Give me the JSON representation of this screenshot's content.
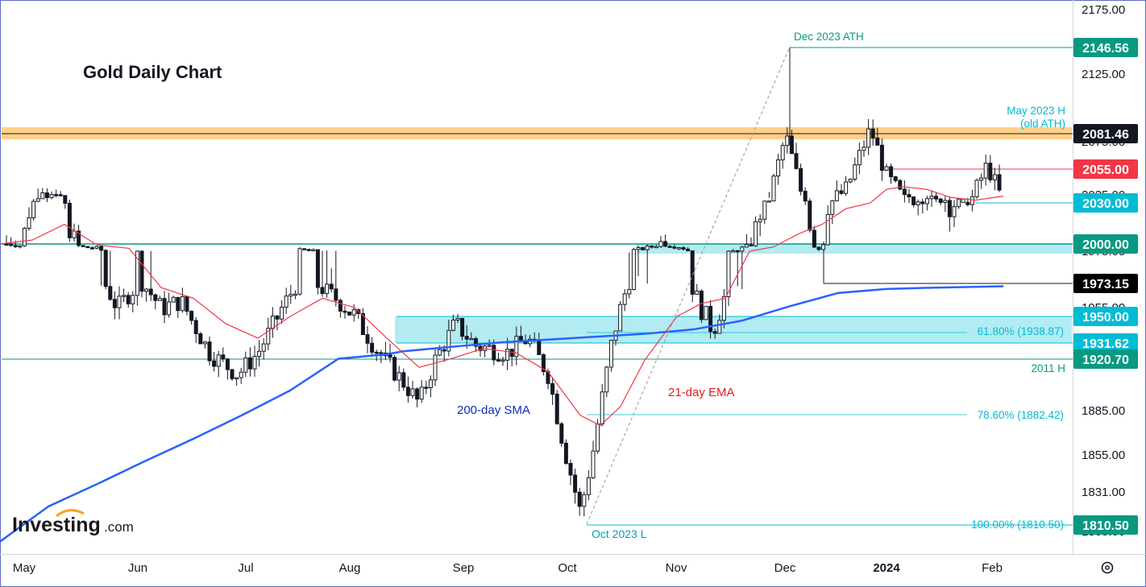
{
  "chart_data": {
    "type": "candlestick",
    "title": "Gold Daily Chart",
    "x_axis": {
      "labels": [
        "May",
        "Jun",
        "Jul",
        "Aug",
        "Sep",
        "Oct",
        "Nov",
        "Dec",
        "2024",
        "Feb"
      ]
    },
    "y_axis": {
      "range": [
        1795,
        2180
      ],
      "ticks": [
        "2175.00",
        "2125.00",
        "2075.00",
        "2025.00",
        "1975.00",
        "1955.00",
        "1885.00",
        "1855.00",
        "1831.00",
        "1805.00"
      ]
    },
    "series": [
      {
        "name": "200-day SMA",
        "color": "#2962ff",
        "points": [
          [
            0,
            1798
          ],
          [
            60,
            1822
          ],
          [
            120,
            1836
          ],
          [
            180,
            1851
          ],
          [
            240,
            1866
          ],
          [
            300,
            1882
          ],
          [
            360,
            1899
          ],
          [
            420,
            1921
          ],
          [
            480,
            1924
          ],
          [
            500,
            1926
          ],
          [
            560,
            1929
          ],
          [
            620,
            1932
          ],
          [
            680,
            1934
          ],
          [
            740,
            1936
          ],
          [
            800,
            1938
          ],
          [
            860,
            1941
          ],
          [
            920,
            1947
          ],
          [
            980,
            1956
          ],
          [
            1040,
            1966
          ],
          [
            1100,
            1969
          ],
          [
            1160,
            1970
          ],
          [
            1245,
            1971
          ]
        ]
      },
      {
        "name": "21-day EMA",
        "color": "#f23645",
        "points": [
          [
            0,
            2000
          ],
          [
            40,
            2002
          ],
          [
            80,
            2010
          ],
          [
            120,
            1997
          ],
          [
            160,
            1985
          ],
          [
            200,
            1970
          ],
          [
            240,
            1962
          ],
          [
            280,
            1945
          ],
          [
            320,
            1935
          ],
          [
            360,
            1950
          ],
          [
            400,
            1962
          ],
          [
            440,
            1955
          ],
          [
            480,
            1935
          ],
          [
            520,
            1915
          ],
          [
            560,
            1921
          ],
          [
            600,
            1928
          ],
          [
            640,
            1925
          ],
          [
            680,
            1912
          ],
          [
            720,
            1882
          ],
          [
            745,
            1875
          ],
          [
            770,
            1888
          ],
          [
            800,
            1920
          ],
          [
            840,
            1950
          ],
          [
            870,
            1958
          ],
          [
            900,
            1962
          ],
          [
            930,
            1975
          ],
          [
            960,
            1990
          ],
          [
            990,
            2005
          ],
          [
            1020,
            2010
          ],
          [
            1050,
            2018
          ],
          [
            1080,
            2030
          ],
          [
            1100,
            2040
          ],
          [
            1120,
            2042
          ],
          [
            1150,
            2040
          ],
          [
            1180,
            2034
          ],
          [
            1210,
            2032
          ],
          [
            1245,
            2035
          ]
        ]
      },
      {
        "name": "Price path",
        "color": "#131722",
        "points": [
          [
            8,
            2000
          ],
          [
            25,
            1995
          ],
          [
            50,
            2045
          ],
          [
            75,
            2025
          ],
          [
            100,
            1990
          ],
          [
            120,
            1985
          ],
          [
            145,
            1955
          ],
          [
            175,
            1975
          ],
          [
            200,
            1955
          ],
          [
            225,
            1960
          ],
          [
            260,
            1925
          ],
          [
            295,
            1910
          ],
          [
            320,
            1925
          ],
          [
            350,
            1955
          ],
          [
            375,
            1980
          ],
          [
            410,
            1965
          ],
          [
            440,
            1950
          ],
          [
            470,
            1925
          ],
          [
            500,
            1905
          ],
          [
            520,
            1890
          ],
          [
            540,
            1920
          ],
          [
            565,
            1945
          ],
          [
            590,
            1930
          ],
          [
            630,
            1925
          ],
          [
            655,
            1935
          ],
          [
            680,
            1910
          ],
          [
            700,
            1860
          ],
          [
            720,
            1818
          ],
          [
            735,
            1855
          ],
          [
            760,
            1935
          ],
          [
            780,
            1975
          ],
          [
            800,
            1985
          ],
          [
            820,
            2000
          ],
          [
            845,
            1990
          ],
          [
            870,
            1955
          ],
          [
            885,
            1940
          ],
          [
            900,
            1965
          ],
          [
            930,
            1995
          ],
          [
            955,
            2035
          ],
          [
            975,
            2080
          ],
          [
            1000,
            2025
          ],
          [
            1015,
            1980
          ],
          [
            1030,
            2030
          ],
          [
            1050,
            2040
          ],
          [
            1080,
            2085
          ],
          [
            1100,
            2050
          ],
          [
            1130,
            2025
          ],
          [
            1160,
            2030
          ],
          [
            1180,
            2020
          ],
          [
            1200,
            2025
          ],
          [
            1225,
            2058
          ],
          [
            1245,
            2030
          ]
        ]
      }
    ],
    "horizontal_levels": [
      {
        "value": "2146.56",
        "color": "#089981",
        "label": "Dec 2023 ATH"
      },
      {
        "value": "2081.46",
        "color": "#131722",
        "label": "May 2023 H (old ATH)",
        "zone_color": "#ffd08a"
      },
      {
        "value": "2055.00",
        "color": "#f23645"
      },
      {
        "value": "2030.00",
        "color": "#00bcd4"
      },
      {
        "value": "2000.00",
        "color": "#089981",
        "zone_color": "#b2ebf2"
      },
      {
        "value": "1973.15",
        "color": "#000000"
      },
      {
        "value": "1950.00",
        "color": "#00bcd4",
        "zone_color": "#b2ebf2"
      },
      {
        "value": "1931.62",
        "color": "#00bcd4"
      },
      {
        "value": "1920.70",
        "color": "#089981",
        "label": "2011 H"
      },
      {
        "value": "1810.50",
        "color": "#089981"
      }
    ],
    "fibonacci": [
      {
        "label": "61.80% (1938.87)"
      },
      {
        "label": "78.60% (1882.42)"
      },
      {
        "label": "100.00% (1810.50)"
      }
    ],
    "annotations": [
      {
        "text": "200-day SMA",
        "color": "#0d2bb8"
      },
      {
        "text": "21-day EMA",
        "color": "#e0201b"
      },
      {
        "text": "Oct 2023 L",
        "color": "#00a0b8"
      }
    ],
    "legend": "none",
    "grid": false
  },
  "branding": {
    "logo_main": "Investing",
    "logo_suffix": ".com"
  },
  "ui": {
    "settings_icon": "gear-icon"
  }
}
